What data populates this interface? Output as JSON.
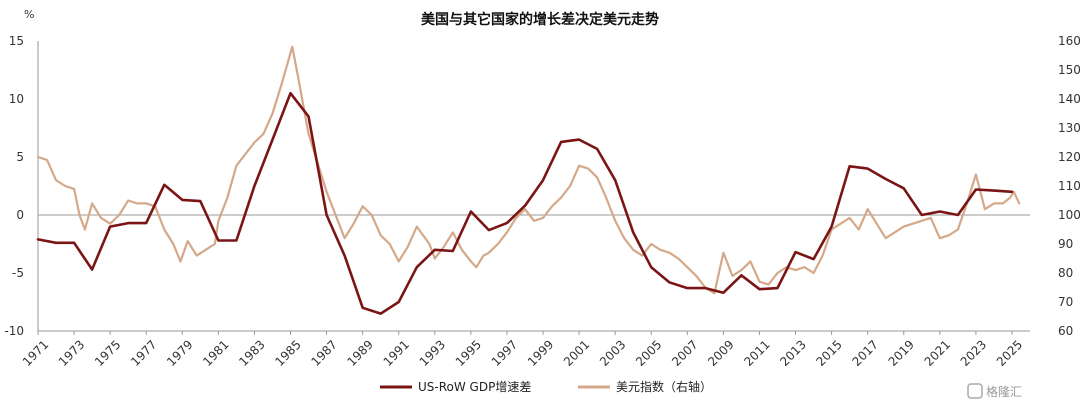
{
  "chart_data": {
    "type": "line",
    "title": "美国与其它国家的增长差决定美元走势",
    "left_axis_unit": "%",
    "ylim_left": [
      -10,
      15
    ],
    "yticks_left": [
      -10,
      -5,
      0,
      5,
      10,
      15
    ],
    "ylim_right": [
      60,
      160
    ],
    "yticks_right": [
      60,
      70,
      80,
      90,
      100,
      110,
      120,
      130,
      140,
      150,
      160
    ],
    "xlim": [
      1971,
      2026
    ],
    "xticks": [
      "1971",
      "1973",
      "1975",
      "1977",
      "1979",
      "1981",
      "1983",
      "1985",
      "1987",
      "1989",
      "1991",
      "1993",
      "1995",
      "1997",
      "1999",
      "2001",
      "2003",
      "2005",
      "2007",
      "2009",
      "2011",
      "2013",
      "2015",
      "2017",
      "2019",
      "2021",
      "2023",
      "2025"
    ],
    "grid": false,
    "legend_position": "bottom",
    "series": [
      {
        "name": "US-RoW GDP增速差",
        "axis": "left",
        "color": "#7b1515",
        "x": [
          1971,
          1972,
          1973,
          1974,
          1975,
          1976,
          1977,
          1978,
          1979,
          1980,
          1981,
          1982,
          1983,
          1984,
          1985,
          1986,
          1987,
          1988,
          1989,
          1990,
          1991,
          1992,
          1993,
          1994,
          1995,
          1996,
          1997,
          1998,
          1999,
          2000,
          2001,
          2002,
          2003,
          2004,
          2005,
          2006,
          2007,
          2008,
          2009,
          2010,
          2011,
          2012,
          2013,
          2014,
          2015,
          2016,
          2017,
          2018,
          2019,
          2020,
          2021,
          2022,
          2023,
          2024,
          2025
        ],
        "y": [
          -2.1,
          -2.4,
          -2.4,
          -4.7,
          -1.0,
          -0.7,
          -0.7,
          2.6,
          1.3,
          1.2,
          -2.2,
          -2.2,
          2.5,
          6.5,
          10.5,
          8.5,
          0.0,
          -3.5,
          -8.0,
          -8.5,
          -7.5,
          -4.5,
          -3.0,
          -3.1,
          0.3,
          -1.3,
          -0.7,
          0.8,
          3.0,
          6.3,
          6.5,
          5.7,
          3.0,
          -1.5,
          -4.5,
          -5.8,
          -6.3,
          -6.3,
          -6.7,
          -5.2,
          -6.4,
          -6.3,
          -3.2,
          -3.8,
          -1.0,
          4.2,
          4.0,
          3.1,
          2.3,
          0.0,
          0.3,
          0.0,
          2.2,
          2.1,
          2.0
        ]
      },
      {
        "name": "美元指数（右轴）",
        "axis": "right",
        "color": "#d4a888",
        "x": [
          1971,
          1971.5,
          1972,
          1972.5,
          1973,
          1973.3,
          1973.6,
          1974,
          1974.5,
          1975,
          1975.5,
          1976,
          1976.5,
          1977,
          1977.5,
          1978,
          1978.5,
          1978.9,
          1979.3,
          1979.8,
          1980.3,
          1980.8,
          1981,
          1981.5,
          1982,
          1982.5,
          1983,
          1983.5,
          1984,
          1984.5,
          1985.1,
          1985.5,
          1986,
          1986.5,
          1987,
          1987.5,
          1988,
          1988.5,
          1989,
          1989.5,
          1990,
          1990.5,
          1991,
          1991.5,
          1992,
          1992.7,
          1993,
          1993.5,
          1994,
          1994.5,
          1995,
          1995.3,
          1995.7,
          1996,
          1996.5,
          1997,
          1997.5,
          1998,
          1998.5,
          1999,
          1999.5,
          2000,
          2000.5,
          2001,
          2001.5,
          2002,
          2002.5,
          2003,
          2003.5,
          2004,
          2004.5,
          2005,
          2005.5,
          2006,
          2006.5,
          2007,
          2007.5,
          2008,
          2008.5,
          2009,
          2009.5,
          2010,
          2010.5,
          2011,
          2011.5,
          2012,
          2012.5,
          2013,
          2013.5,
          2014,
          2014.5,
          2015,
          2015.5,
          2016,
          2016.5,
          2017,
          2017.5,
          2018,
          2018.5,
          2019,
          2019.5,
          2020,
          2020.5,
          2021,
          2021.5,
          2022,
          2022.5,
          2022.8,
          2023,
          2023.5,
          2024,
          2024.5,
          2024.9,
          2025.1,
          2025.4
        ],
        "y": [
          120,
          119,
          112,
          110,
          109,
          100,
          95,
          104,
          99,
          97,
          100,
          105,
          104,
          104,
          103,
          95,
          90,
          84,
          91,
          86,
          88,
          90,
          98,
          106,
          117,
          121,
          125,
          128,
          135,
          145,
          158,
          145,
          128,
          118,
          108,
          100,
          92,
          97,
          103,
          100,
          93,
          90,
          84,
          89,
          96,
          90,
          85,
          89,
          94,
          88,
          84,
          82,
          86,
          87,
          90,
          94,
          99,
          102,
          98,
          99,
          103,
          106,
          110,
          117,
          116,
          113,
          106,
          98,
          92,
          88,
          86,
          90,
          88,
          87,
          85,
          82,
          79,
          75,
          73,
          87,
          79,
          81,
          84,
          77,
          76,
          80,
          82,
          81,
          82,
          80,
          86,
          95,
          97,
          99,
          95,
          102,
          97,
          92,
          94,
          96,
          97,
          98,
          99,
          92,
          93,
          95,
          104,
          110,
          114,
          102,
          104,
          104,
          106,
          108,
          104
        ]
      }
    ]
  },
  "legend": {
    "items": [
      {
        "label": "US-RoW GDP增速差",
        "color": "#7b1515"
      },
      {
        "label": "美元指数（右轴）",
        "color": "#d4a888"
      }
    ]
  },
  "watermark": {
    "text": "格隆汇",
    "icon": "glh-logo-icon"
  }
}
